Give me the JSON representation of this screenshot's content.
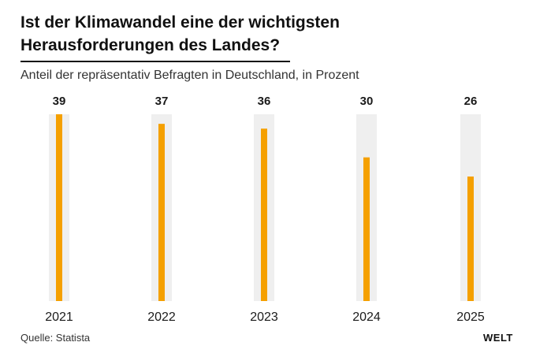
{
  "header": {
    "title_line1": "Ist der Klimawandel eine der wichtigsten",
    "title_line2": "Herausforderungen des Landes?",
    "subtitle": "Anteil der repräsentativ Befragten in Deutschland, in Prozent"
  },
  "footer": {
    "source": "Quelle: Statista",
    "brand": "WELT"
  },
  "colors": {
    "bar": "#f5a000",
    "track": "#efefef",
    "text": "#1a1a1a"
  },
  "chart_data": {
    "type": "bar",
    "categories": [
      "2021",
      "2022",
      "2023",
      "2024",
      "2025"
    ],
    "values": [
      39,
      37,
      36,
      30,
      26
    ],
    "title": "Ist der Klimawandel eine der wichtigsten Herausforderungen des Landes?",
    "subtitle": "Anteil der repräsentativ Befragten in Deutschland, in Prozent",
    "xlabel": "",
    "ylabel": "",
    "ylim": [
      0,
      39
    ],
    "grid": false,
    "legend": "none",
    "data_labels": true
  }
}
